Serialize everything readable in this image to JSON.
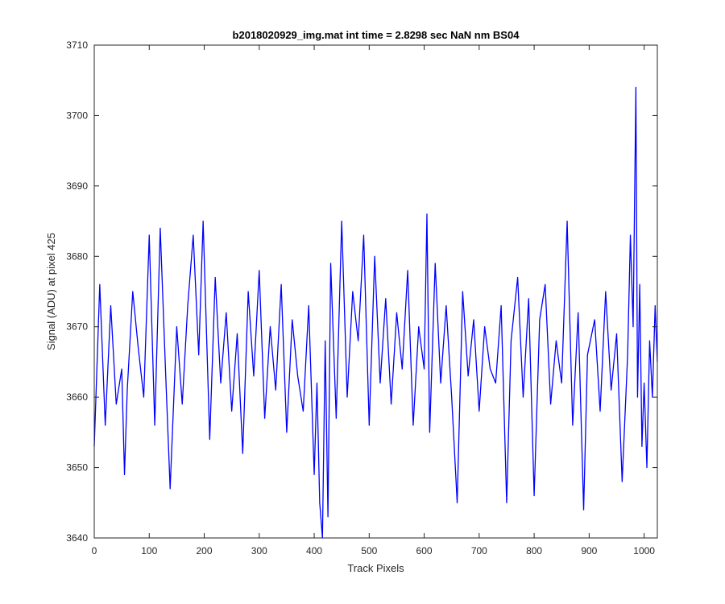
{
  "chart_data": {
    "type": "line",
    "title": "b2018020929_img.mat int time = 2.8298 sec  NaN nm BS04",
    "xlabel": "Track Pixels",
    "ylabel": "Signal (ADU) at pixel 425",
    "xlim": [
      0,
      1024
    ],
    "ylim": [
      3640,
      3710
    ],
    "xticks": [
      0,
      100,
      200,
      300,
      400,
      500,
      600,
      700,
      800,
      900,
      1000
    ],
    "yticks": [
      3640,
      3650,
      3660,
      3670,
      3680,
      3690,
      3700,
      3710
    ],
    "grid": false,
    "legend": "none",
    "series": [
      {
        "color": "#0000ff",
        "x": [
          0,
          10,
          20,
          30,
          40,
          50,
          55,
          60,
          70,
          80,
          90,
          100,
          110,
          120,
          130,
          138,
          150,
          160,
          170,
          180,
          190,
          198,
          210,
          220,
          230,
          240,
          250,
          260,
          270,
          280,
          290,
          300,
          310,
          320,
          330,
          340,
          350,
          360,
          370,
          380,
          390,
          400,
          405,
          410,
          415,
          420,
          425,
          430,
          440,
          450,
          460,
          470,
          480,
          490,
          500,
          510,
          520,
          530,
          540,
          550,
          560,
          570,
          580,
          590,
          600,
          605,
          610,
          620,
          630,
          640,
          650,
          660,
          670,
          680,
          690,
          700,
          710,
          720,
          730,
          740,
          750,
          758,
          770,
          780,
          790,
          800,
          810,
          820,
          830,
          840,
          850,
          860,
          870,
          880,
          890,
          897,
          910,
          920,
          930,
          940,
          950,
          960,
          970,
          975,
          980,
          985,
          988,
          992,
          996,
          1000,
          1005,
          1010,
          1015,
          1020,
          1024
        ],
        "y": [
          3653,
          3676,
          3656,
          3673,
          3659,
          3664,
          3649,
          3661,
          3675,
          3667,
          3660,
          3683,
          3656,
          3684,
          3663,
          3647,
          3670,
          3659,
          3673,
          3683,
          3666,
          3685,
          3654,
          3677,
          3662,
          3672,
          3658,
          3669,
          3652,
          3675,
          3663,
          3678,
          3657,
          3670,
          3661,
          3676,
          3655,
          3671,
          3663,
          3658,
          3673,
          3649,
          3662,
          3645,
          3640,
          3668,
          3643,
          3679,
          3657,
          3685,
          3660,
          3675,
          3668,
          3683,
          3656,
          3680,
          3662,
          3674,
          3659,
          3672,
          3664,
          3678,
          3656,
          3670,
          3664,
          3686,
          3655,
          3679,
          3662,
          3673,
          3660,
          3645,
          3675,
          3663,
          3671,
          3658,
          3670,
          3664,
          3662,
          3673,
          3645,
          3668,
          3677,
          3660,
          3674,
          3646,
          3671,
          3676,
          3659,
          3668,
          3662,
          3685,
          3656,
          3672,
          3644,
          3666,
          3671,
          3658,
          3675,
          3661,
          3669,
          3648,
          3666,
          3683,
          3670,
          3704,
          3660,
          3676,
          3653,
          3662,
          3650,
          3668,
          3660,
          3673,
          3665
        ]
      }
    ]
  }
}
